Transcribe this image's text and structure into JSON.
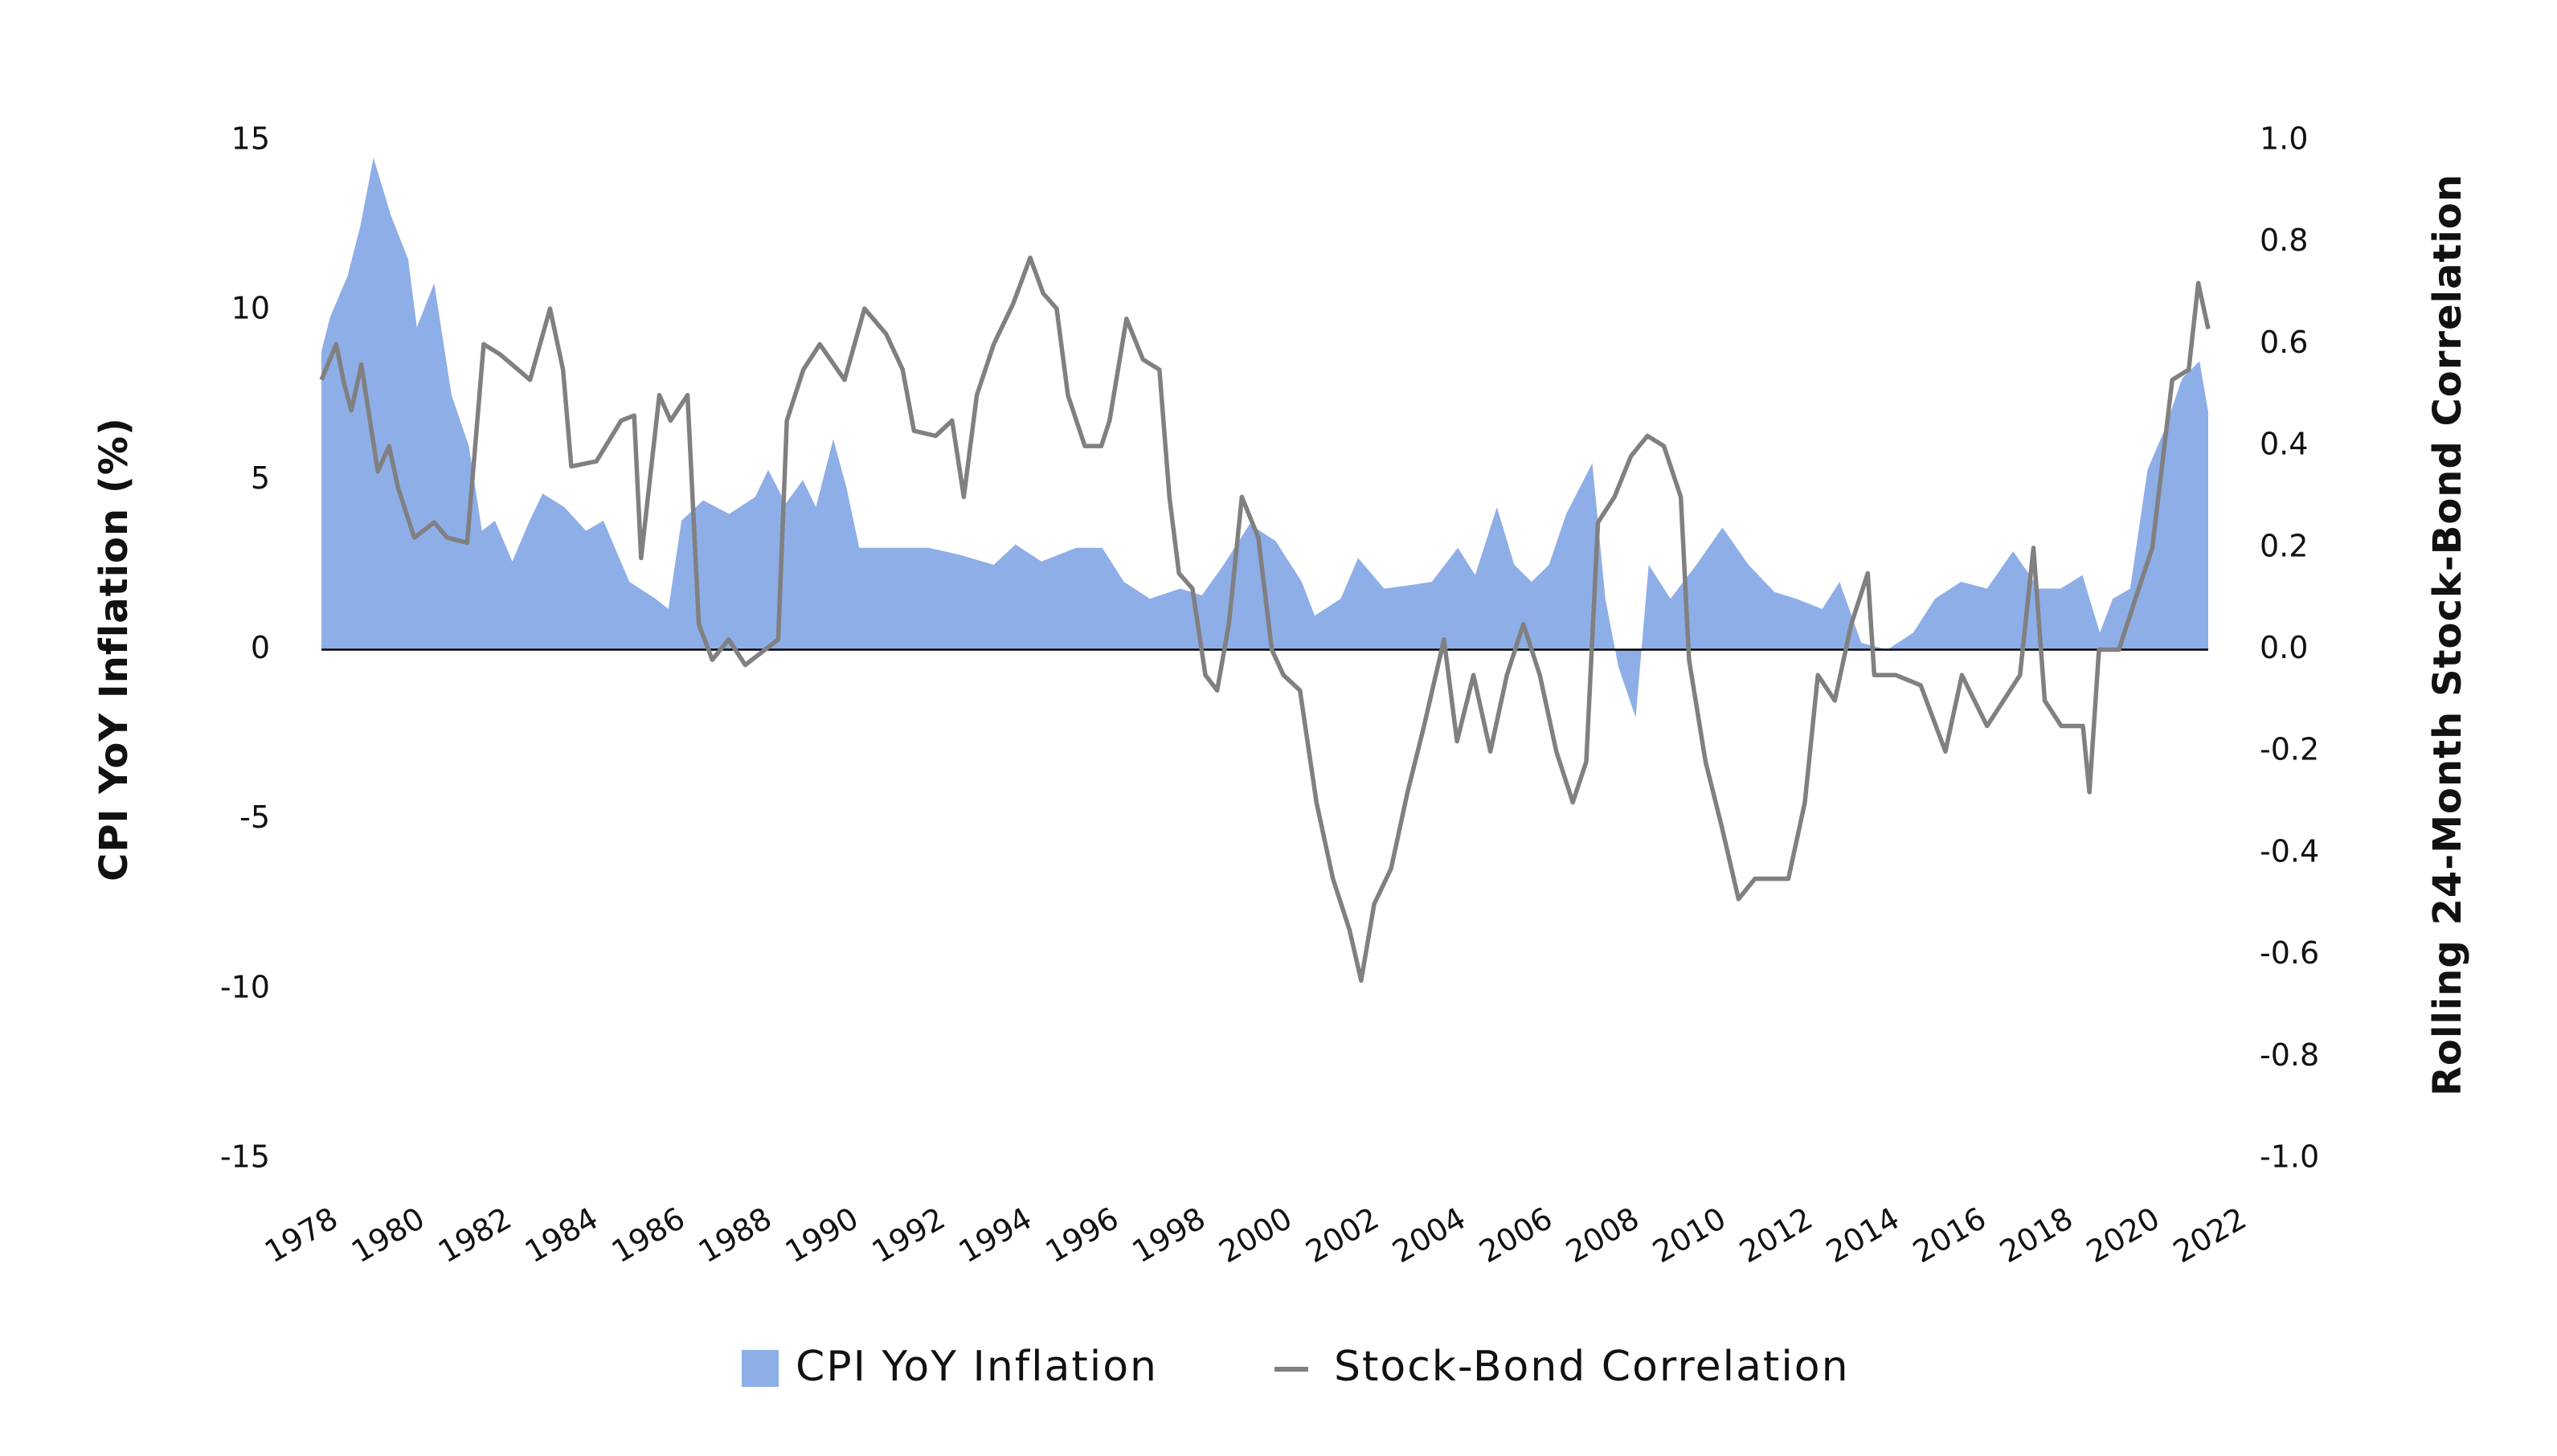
{
  "chart_data": {
    "type": "area-line",
    "y_label": "CPI YoY Inflation (%)",
    "y2_label": "Rolling 24-Month Stock-Bond Correlation",
    "xlim": [
      1978,
      2022
    ],
    "xticks": [
      1978,
      1980,
      1982,
      1984,
      1986,
      1988,
      1990,
      1992,
      1994,
      1996,
      1998,
      2000,
      2002,
      2004,
      2006,
      2008,
      2010,
      2012,
      2014,
      2016,
      2018,
      2020,
      2022
    ],
    "ylim": [
      -15,
      15
    ],
    "yticks": [
      -15,
      -10,
      -5,
      0,
      5,
      10,
      15
    ],
    "y2lim": [
      -1,
      1
    ],
    "y2ticks": [
      {
        "value": -1,
        "label": "-1.0"
      },
      -0.8,
      -0.6,
      -0.4,
      -0.2,
      {
        "value": 0,
        "label": "0.0"
      },
      0.2,
      0.4,
      0.6,
      0.8,
      {
        "value": 1,
        "label": "1.0"
      }
    ],
    "series": [
      {
        "name": "CPI YoY Inflation",
        "kind": "area",
        "color": "#8eaee8",
        "x": [
          1978.0,
          1978.2,
          1978.6,
          1978.9,
          1979.2,
          1979.6,
          1980.0,
          1980.2,
          1980.6,
          1981.0,
          1981.4,
          1981.7,
          1982.0,
          1982.4,
          1982.8,
          1983.1,
          1983.6,
          1984.1,
          1984.5,
          1985.1,
          1985.7,
          1986.0,
          1986.3,
          1986.8,
          1987.4,
          1988.0,
          1988.3,
          1988.7,
          1989.1,
          1989.4,
          1989.8,
          1990.1,
          1990.4,
          1991.0,
          1992.0,
          1992.7,
          1993.5,
          1994.0,
          1994.6,
          1995.4,
          1996.0,
          1996.5,
          1997.1,
          1997.8,
          1998.3,
          1998.8,
          1999.4,
          2000.0,
          2000.6,
          2000.9,
          2001.5,
          2001.9,
          2002.5,
          2003.1,
          2003.6,
          2004.2,
          2004.6,
          2005.1,
          2005.5,
          2005.9,
          2006.3,
          2006.7,
          2007.3,
          2007.6,
          2007.9,
          2008.3,
          2008.6,
          2009.1,
          2009.7,
          2010.3,
          2010.9,
          2011.5,
          2012.0,
          2012.6,
          2013.0,
          2013.5,
          2014.1,
          2014.7,
          2015.2,
          2015.8,
          2016.4,
          2017.0,
          2017.6,
          2018.1,
          2018.6,
          2019.0,
          2019.3,
          2019.7,
          2020.1,
          2020.5,
          2020.9,
          2021.3,
          2021.5
        ],
        "values": [
          8.8,
          9.8,
          11,
          12.5,
          14.5,
          12.8,
          11.5,
          9.5,
          10.8,
          7.5,
          6,
          3.5,
          3.8,
          2.6,
          3.8,
          4.6,
          4.2,
          3.5,
          3.8,
          2,
          1.5,
          1.2,
          3.8,
          4.4,
          4,
          4.5,
          5.3,
          4.3,
          5,
          4.2,
          6.2,
          4.8,
          3,
          3,
          3,
          2.8,
          2.5,
          3.1,
          2.6,
          3,
          3,
          2,
          1.5,
          1.8,
          1.6,
          2.5,
          3.7,
          3.2,
          2,
          1,
          1.5,
          2.7,
          1.8,
          1.9,
          2,
          3,
          2.2,
          4.2,
          2.5,
          2,
          2.5,
          4,
          5.5,
          1.5,
          -0.5,
          -2,
          2.5,
          1.5,
          2.5,
          3.6,
          2.5,
          1.7,
          1.5,
          1.2,
          2,
          0.2,
          0,
          0.5,
          1.5,
          2,
          1.8,
          2.9,
          1.8,
          1.8,
          2.2,
          0.5,
          1.5,
          1.8,
          5.3,
          6.5,
          8,
          8.5,
          7
        ]
      },
      {
        "name": "Stock-Bond Correlation",
        "kind": "line",
        "axis": "y2",
        "color": "#808080",
        "x": [
          1978.0,
          1978.34,
          1978.53,
          1978.69,
          1978.92,
          1979.3,
          1979.56,
          1979.76,
          1980.14,
          1980.6,
          1980.9,
          1981.36,
          1981.74,
          1982.12,
          1982.81,
          1983.27,
          1983.57,
          1983.76,
          1984.34,
          1984.91,
          1985.21,
          1985.37,
          1985.79,
          1986.05,
          1986.44,
          1986.7,
          1987.01,
          1987.39,
          1987.77,
          1988.23,
          1988.53,
          1988.73,
          1989.11,
          1989.49,
          1990.06,
          1990.52,
          1991.02,
          1991.4,
          1991.66,
          1992.16,
          1992.54,
          1992.81,
          1993.11,
          1993.5,
          1993.95,
          1994.34,
          1994.64,
          1994.95,
          1995.21,
          1995.6,
          1995.98,
          1996.17,
          1996.56,
          1996.94,
          1997.32,
          1997.55,
          1997.77,
          1998.08,
          1998.38,
          1998.65,
          1998.92,
          1999.22,
          1999.6,
          1999.91,
          2000.18,
          2000.56,
          2000.94,
          2001.32,
          2001.7,
          2001.97,
          2002.27,
          2002.66,
          2003.04,
          2003.42,
          2003.88,
          2004.18,
          2004.56,
          2004.95,
          2005.33,
          2005.71,
          2006.09,
          2006.47,
          2006.85,
          2007.16,
          2007.43,
          2007.81,
          2008.19,
          2008.57,
          2008.95,
          2009.34,
          2009.53,
          2009.91,
          2010.29,
          2010.67,
          2011.05,
          2011.44,
          2011.82,
          2012.2,
          2012.5,
          2012.89,
          2013.27,
          2013.65,
          2013.8,
          2014.3,
          2014.87,
          2015.44,
          2015.82,
          2016.4,
          2016.78,
          2017.16,
          2017.47,
          2017.73,
          2018.11,
          2018.61,
          2018.76,
          2018.98,
          2019.44,
          2019.82,
          2020.21,
          2020.67,
          2021.05,
          2021.27,
          2021.5
        ],
        "values": [
          0.53,
          0.6,
          0.52,
          0.47,
          0.56,
          0.35,
          0.4,
          0.32,
          0.22,
          0.25,
          0.22,
          0.21,
          0.6,
          0.58,
          0.53,
          0.67,
          0.55,
          0.36,
          0.37,
          0.45,
          0.46,
          0.18,
          0.5,
          0.45,
          0.5,
          0.05,
          -0.02,
          0.02,
          -0.03,
          0.0,
          0.02,
          0.45,
          0.55,
          0.6,
          0.53,
          0.67,
          0.62,
          0.55,
          0.43,
          0.42,
          0.45,
          0.3,
          0.5,
          0.6,
          0.68,
          0.77,
          0.7,
          0.67,
          0.5,
          0.4,
          0.4,
          0.45,
          0.65,
          0.57,
          0.55,
          0.3,
          0.15,
          0.12,
          -0.05,
          -0.08,
          0.05,
          0.3,
          0.22,
          0.0,
          -0.05,
          -0.08,
          -0.3,
          -0.45,
          -0.55,
          -0.65,
          -0.5,
          -0.43,
          -0.28,
          -0.15,
          0.02,
          -0.18,
          -0.05,
          -0.2,
          -0.05,
          0.05,
          -0.05,
          -0.2,
          -0.3,
          -0.22,
          0.25,
          0.3,
          0.38,
          0.42,
          0.4,
          0.3,
          -0.02,
          -0.22,
          -0.35,
          -0.49,
          -0.45,
          -0.45,
          -0.45,
          -0.3,
          -0.05,
          -0.1,
          0.05,
          0.15,
          -0.05,
          -0.05,
          -0.07,
          -0.2,
          -0.05,
          -0.15,
          -0.1,
          -0.05,
          0.2,
          -0.1,
          -0.15,
          -0.15,
          -0.28,
          0.0,
          0.0,
          0.1,
          0.2,
          0.53,
          0.55,
          0.72,
          0.63
        ]
      }
    ]
  }
}
